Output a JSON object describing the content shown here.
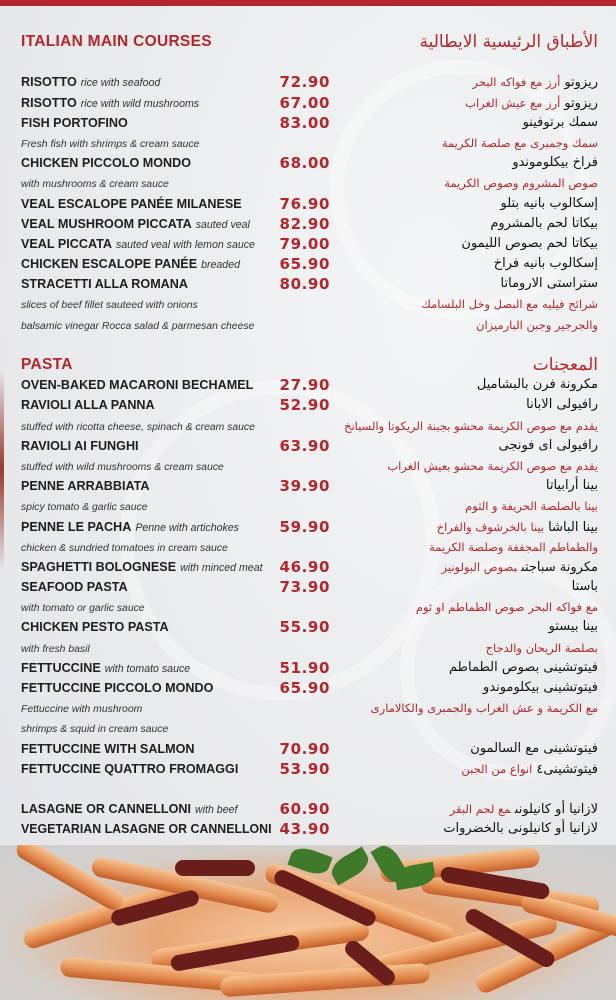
{
  "colors": {
    "accent": "#b3262b",
    "text": "#1e1e1e",
    "background": "#eceef0"
  },
  "lines": [
    {
      "kind": "hdr",
      "en": "ITALIAN MAIN COURSES",
      "ar": "الأطباق الرئيسية الايطالية"
    },
    {
      "kind": "blank"
    },
    {
      "kind": "item",
      "en": "RISOTTO",
      "en_i": "rice with seafood",
      "price": "72.90",
      "ar": "ريزوتو",
      "ar_r": "أرز مع فواكه البحر"
    },
    {
      "kind": "item",
      "en": "RISOTTO",
      "en_i": "rice with wild mushrooms",
      "price": "67.00",
      "ar": "ريزوتو",
      "ar_r": "أرز مع عيش الغراب"
    },
    {
      "kind": "item",
      "en": "FISH PORTOFINO",
      "price": "83.00",
      "ar": "سمك برتوفينو"
    },
    {
      "kind": "note",
      "en_i": "Fresh fish with shrimps & cream sauce",
      "ar_r": "سمك وجمبرى مع صلصة الكريمة"
    },
    {
      "kind": "item",
      "en": "CHICKEN PICCOLO MONDO",
      "price": "68.00",
      "ar": "فراخ بيكلوموندو"
    },
    {
      "kind": "note",
      "en_i": "with mushrooms & cream sauce",
      "ar_r": "صوص المشروم وصوص الكريمة"
    },
    {
      "kind": "item",
      "en": "VEAL ESCALOPE PANÉE MILANESE",
      "price": "76.90",
      "ar": "إسكالوب بانيه بتلو"
    },
    {
      "kind": "item",
      "en": "VEAL MUSHROOM PICCATA",
      "en_i": "sauted veal",
      "price": "82.90",
      "ar": "بيكاتا لحم بالمشروم"
    },
    {
      "kind": "item",
      "en": "VEAL PICCATA",
      "en_i": "sauted veal with lemon sauce",
      "price": "79.00",
      "ar": "بيكاتا لحم بصوص الليمون"
    },
    {
      "kind": "item",
      "en": "CHICKEN ESCALOPE PANÉE",
      "en_i": "breaded",
      "price": "65.90",
      "ar": "إسكالوب بانيه فراخ"
    },
    {
      "kind": "item",
      "en": "STRACETTI ALLA ROMANA",
      "price": "80.90",
      "ar": "ستراستى الاروماتا"
    },
    {
      "kind": "note",
      "en_i": "slices of beef fillet sauteed with onions",
      "ar_r": "شرائح فيليه مع البصل وخل البلسامك"
    },
    {
      "kind": "note",
      "en_i": "balsamic vinegar Rocca salad & parmesan cheese",
      "ar_r": "والجرجير وجبن البارميزان"
    },
    {
      "kind": "blank"
    },
    {
      "kind": "hdr",
      "en": "PASTA",
      "ar": "المعجنات"
    },
    {
      "kind": "item",
      "en": "OVEN-BAKED MACARONI BECHAMEL",
      "price": "27.90",
      "ar": "مكرونة فرن بالبشاميل"
    },
    {
      "kind": "item",
      "en": "RAVIOLI ALLA PANNA",
      "price": "52.90",
      "ar": "رافيولى الابانا"
    },
    {
      "kind": "note",
      "en_i": "stuffed with ricotta cheese, spinach & cream sauce",
      "ar_r": "يقدم مع صوص الكريمة محشو بجبنة الريكوتا والسبانخ"
    },
    {
      "kind": "item",
      "en": "RAVIOLI AI FUNGHI",
      "price": "63.90",
      "ar": "رافيولى اى فونجى"
    },
    {
      "kind": "note",
      "en_i": "stuffed with wild mushrooms & cream sauce",
      "ar_r": "يقدم مع صوص الكريمة محشو بعيش الغراب"
    },
    {
      "kind": "item",
      "en": "PENNE ARRABBIATA",
      "price": "39.90",
      "ar": "بينا أرابياتا"
    },
    {
      "kind": "note",
      "en_i": "spicy tomato & garlic sauce",
      "ar_r": "بينا بالصلصة الحريفة و الثوم"
    },
    {
      "kind": "item",
      "en": "PENNE LE PACHA",
      "en_i": "Penne with artichokes",
      "price": "59.90",
      "ar": "بينا الباشا",
      "ar_r": "بينا بالخرشوف والفراخ"
    },
    {
      "kind": "note",
      "en_i": "chicken & sundried tomatoes in cream sauce",
      "ar_r": "والطماطم المجففة وصلصة الكريمة"
    },
    {
      "kind": "item",
      "en": "SPAGHETTI BOLOGNESE",
      "en_i": "with minced meat",
      "price": "46.90",
      "ar": "مكرونة سباجتى",
      "ar_r": "بصوص البولونيز"
    },
    {
      "kind": "item",
      "en": "SEAFOOD PASTA",
      "price": "73.90",
      "ar": "باستا"
    },
    {
      "kind": "note",
      "en_i": "with tomato or garlic sauce",
      "ar_r": "مع فواكه البحر صوص الطماطم او ثوم"
    },
    {
      "kind": "item",
      "en": "CHICKEN PESTO PASTA",
      "price": "55.90",
      "ar": "بينا بيستو"
    },
    {
      "kind": "note",
      "en_i": "with fresh basil",
      "ar_r": "بصلصة الريحان والدجاج"
    },
    {
      "kind": "item",
      "en": "FETTUCCINE",
      "en_i": "with tomato sauce",
      "price": "51.90",
      "ar": "فيتوتشينى بصوص الطماطم"
    },
    {
      "kind": "item",
      "en": "FETTUCCINE PICCOLO MONDO",
      "price": "65.90",
      "ar": "فيتوتشينى بيكلوموندو"
    },
    {
      "kind": "note",
      "en_i": "Fettuccine with mushroom",
      "ar_r": "مع الكريمة و عش الغراب والجمبرى والكالامارى"
    },
    {
      "kind": "note",
      "en_i": " shrimps & squid in cream sauce"
    },
    {
      "kind": "item",
      "en": "FETTUCCINE WITH SALMON",
      "price": "70.90",
      "ar": "فيتوتشينى مع السالمون"
    },
    {
      "kind": "item",
      "en": "FETTUCCINE QUATTRO FROMAGGI",
      "price": "53.90",
      "ar": "فيتوتشينى٤",
      "ar_r": "انواع من الجبن"
    },
    {
      "kind": "blank"
    },
    {
      "kind": "item",
      "en": "LASAGNE OR CANNELLONI",
      "en_i": "with beef",
      "price": "60.90",
      "ar": "لازانيا أو كانيلونى",
      "ar_r": "مع لحم البقر"
    },
    {
      "kind": "item",
      "en": "VEGETARIAN LASAGNE OR CANNELLONI",
      "price": "43.90",
      "ar": "لازانيا أو كانيلونى بالخضروات"
    }
  ]
}
